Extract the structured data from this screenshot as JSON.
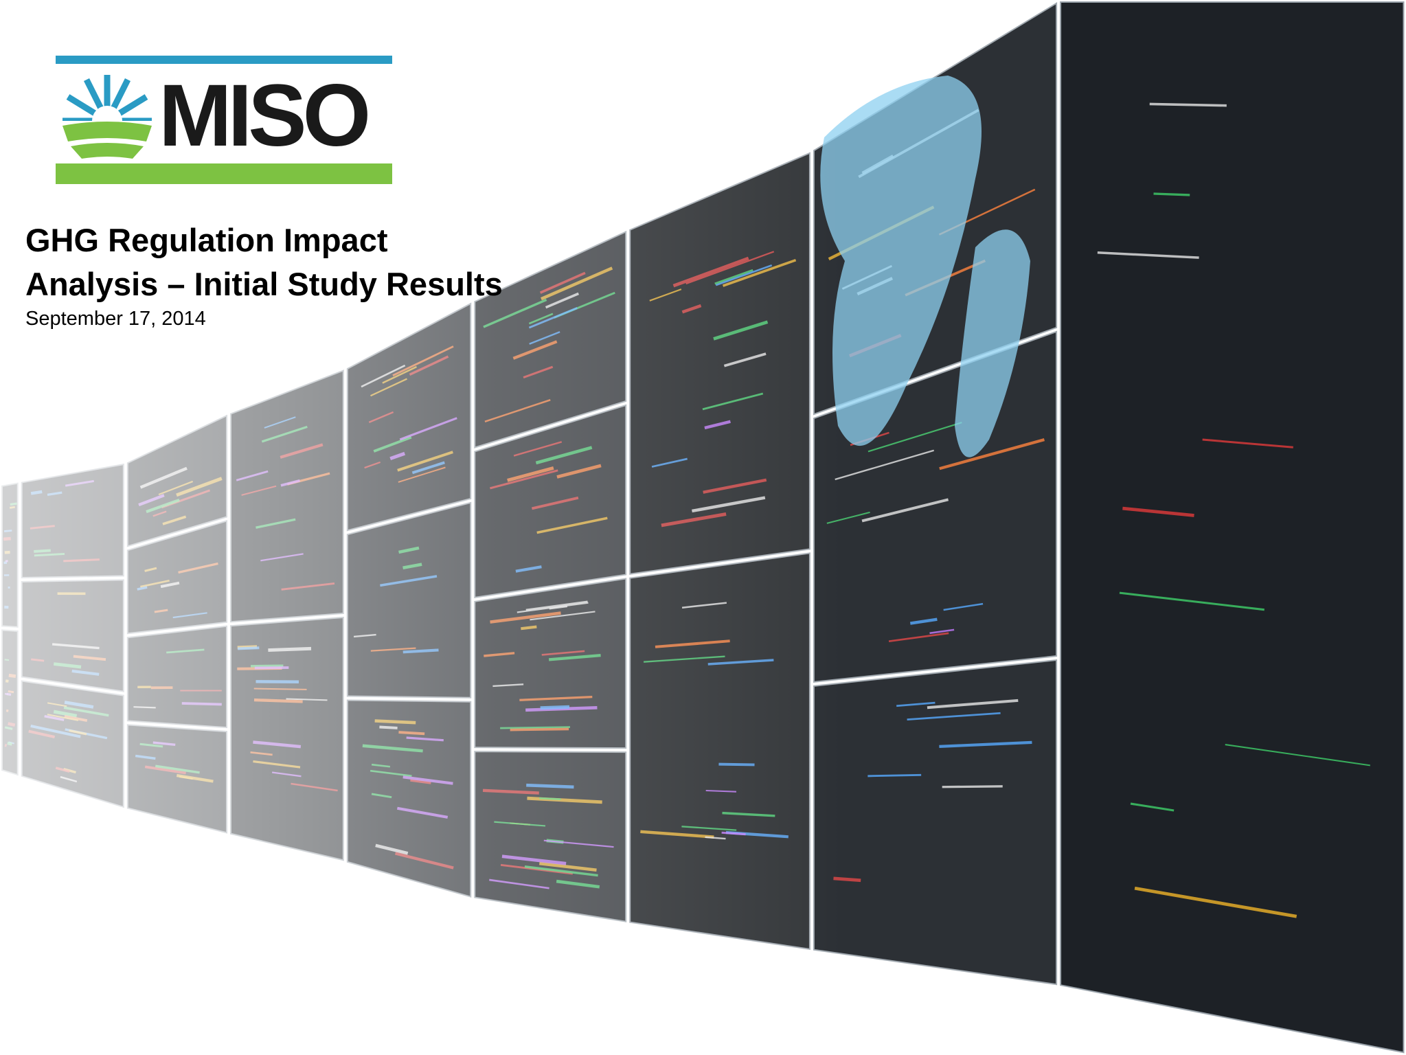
{
  "logo": {
    "text": "MISO"
  },
  "title": {
    "lines": [
      "GHG Regulation Impact",
      "Analysis – Initial Study Results"
    ]
  },
  "date": "September 17, 2014"
}
